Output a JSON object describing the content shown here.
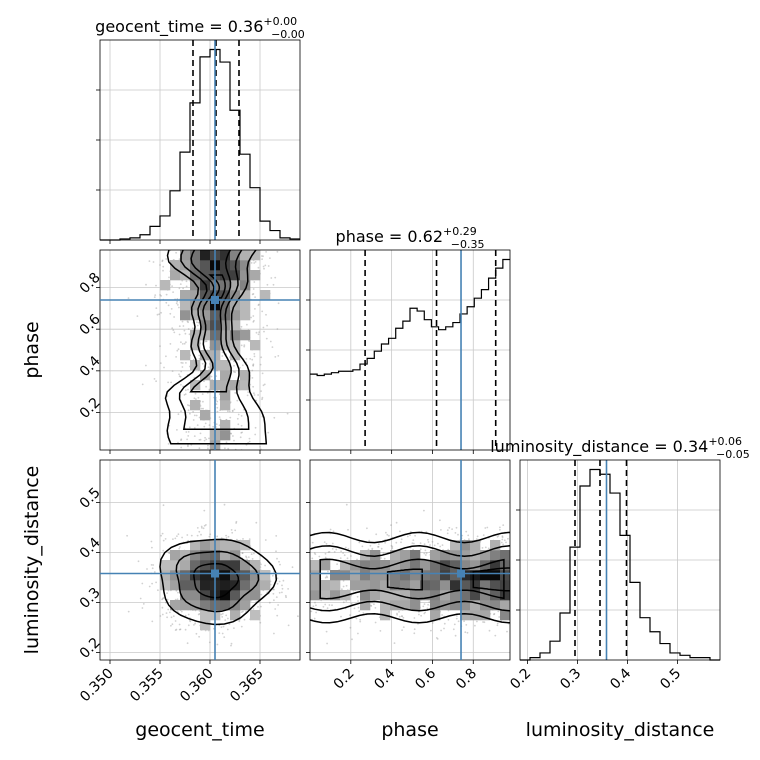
{
  "chart_data": {
    "type": "corner",
    "parameters": [
      "geocent_time",
      "phase",
      "luminosity_distance"
    ],
    "axis_labels": [
      "geocent_time",
      "phase",
      "luminosity_distance"
    ],
    "truth": {
      "geocent_time": 0.3605,
      "phase": 0.74,
      "luminosity_distance": 0.358
    },
    "truth_color": "#4682b4",
    "panels_1d": [
      {
        "param": "geocent_time",
        "title": "geocent_time = 0.36",
        "title_sup": "+0.00",
        "title_sub": "−0.00",
        "xlim": [
          0.349,
          0.369
        ],
        "quantiles": [
          0.3583,
          0.3606,
          0.3629
        ],
        "hist_edges": [
          0.349,
          0.35,
          0.351,
          0.352,
          0.353,
          0.354,
          0.355,
          0.356,
          0.357,
          0.358,
          0.359,
          0.36,
          0.361,
          0.362,
          0.363,
          0.364,
          0.365,
          0.366,
          0.367,
          0.368,
          0.369
        ],
        "hist_counts": [
          0,
          0,
          1,
          2,
          5,
          13,
          23,
          47,
          84,
          131,
          175,
          182,
          170,
          124,
          82,
          50,
          18,
          9,
          2,
          1
        ],
        "xticks": [
          "0.350",
          "0.355",
          "0.360",
          "0.365"
        ],
        "xtick_values": [
          0.35,
          0.355,
          0.36,
          0.365
        ]
      },
      {
        "param": "phase",
        "title": "phase = 0.62",
        "title_sup": "+0.29",
        "title_sub": "−0.35",
        "xlim": [
          0,
          0.98
        ],
        "quantiles": [
          0.27,
          0.62,
          0.91
        ],
        "hist_edges": [
          0,
          0.035,
          0.07,
          0.105,
          0.14,
          0.175,
          0.21,
          0.245,
          0.28,
          0.315,
          0.35,
          0.385,
          0.42,
          0.455,
          0.49,
          0.525,
          0.56,
          0.595,
          0.63,
          0.665,
          0.7,
          0.735,
          0.77,
          0.805,
          0.84,
          0.875,
          0.91,
          0.945,
          0.98
        ],
        "hist_counts": [
          53,
          52,
          53,
          54,
          55,
          55,
          56,
          60,
          64,
          69,
          74,
          78,
          85,
          90,
          99,
          97,
          91,
          86,
          84,
          86,
          89,
          95,
          100,
          106,
          112,
          120,
          127,
          133
        ],
        "xticks": [
          "0.2",
          "0.4",
          "0.6",
          "0.8"
        ],
        "xtick_values": [
          0.2,
          0.4,
          0.6,
          0.8
        ]
      },
      {
        "param": "luminosity_distance",
        "title": "luminosity_distance = 0.34",
        "title_sup": "+0.06",
        "title_sub": "−0.05",
        "xlim": [
          0.185,
          0.585
        ],
        "quantiles": [
          0.295,
          0.345,
          0.398
        ],
        "hist_edges": [
          0.185,
          0.205,
          0.225,
          0.245,
          0.265,
          0.285,
          0.305,
          0.325,
          0.345,
          0.365,
          0.385,
          0.405,
          0.425,
          0.445,
          0.465,
          0.485,
          0.505,
          0.525,
          0.545,
          0.565,
          0.585
        ],
        "hist_counts": [
          0,
          1,
          3,
          8,
          20,
          48,
          74,
          81,
          79,
          71,
          53,
          33,
          18,
          12,
          7,
          3,
          2,
          1,
          1,
          0
        ],
        "xticks": [
          "0.2",
          "0.3",
          "0.4",
          "0.5"
        ],
        "xtick_values": [
          0.2,
          0.3,
          0.4,
          0.5
        ]
      }
    ],
    "panels_2d": [
      {
        "x": "geocent_time",
        "y": "phase",
        "xlim": [
          0.349,
          0.369
        ],
        "ylim": [
          0.02,
          0.98
        ],
        "yticks": [
          "0.2",
          "0.4",
          "0.6",
          "0.8"
        ],
        "ytick_values": [
          0.2,
          0.4,
          0.6,
          0.8
        ]
      },
      {
        "x": "geocent_time",
        "y": "luminosity_distance",
        "xlim": [
          0.349,
          0.369
        ],
        "ylim": [
          0.185,
          0.585
        ],
        "yticks": [
          "0.2",
          "0.3",
          "0.4",
          "0.5"
        ],
        "ytick_values": [
          0.2,
          0.3,
          0.4,
          0.5
        ]
      },
      {
        "x": "phase",
        "y": "luminosity_distance",
        "xlim": [
          0,
          0.98
        ],
        "ylim": [
          0.185,
          0.585
        ]
      }
    ],
    "grid": true
  }
}
